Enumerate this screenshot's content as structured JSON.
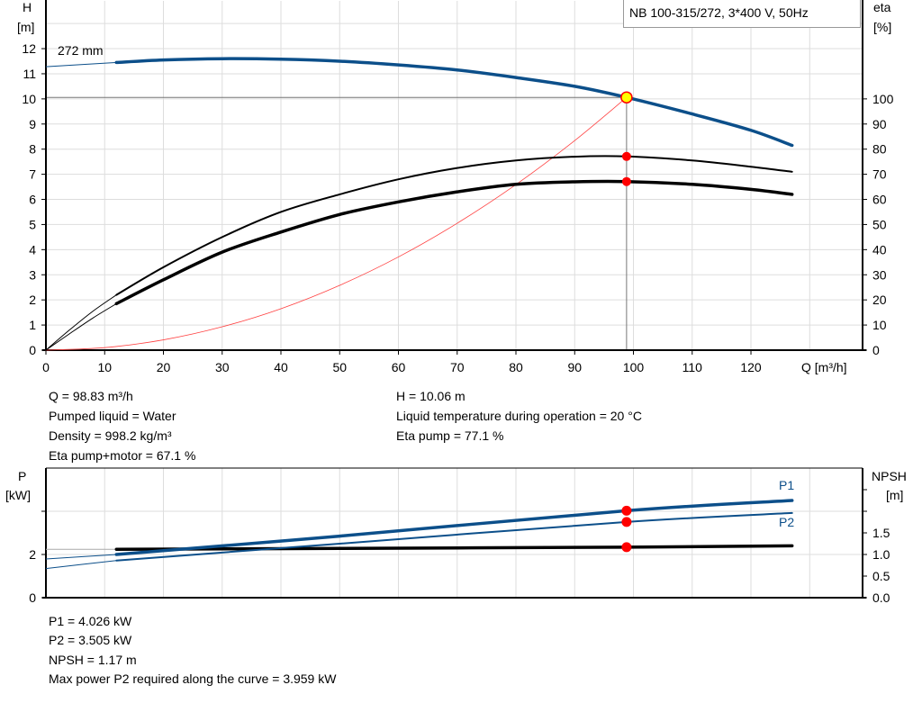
{
  "title": "NB 100-315/272, 3*400 V, 50Hz",
  "colors": {
    "head_curve": "#0c4f8a",
    "efficiency": "#000000",
    "system_curve": "#ff4040",
    "duty_marker": "#ff0000",
    "duty_point_fill": "#ffff00",
    "power": "#0c4f8a",
    "npsh": "#000000",
    "grid": "#dddddd"
  },
  "chart_data": [
    {
      "type": "line",
      "grid": true,
      "xlabel": "Q [m³/h]",
      "ylabel_left": [
        "H",
        "[m]"
      ],
      "ylabel_right": [
        "eta",
        "[%]"
      ],
      "xlim": [
        0,
        139
      ],
      "ylim_left": [
        0,
        13.9
      ],
      "ylim_right": [
        0,
        139
      ],
      "xticks": [
        "0",
        "10",
        "20",
        "30",
        "40",
        "50",
        "60",
        "70",
        "80",
        "90",
        "100",
        "110",
        "120"
      ],
      "yticks_left": [
        "0",
        "1",
        "2",
        "3",
        "4",
        "5",
        "6",
        "7",
        "8",
        "9",
        "10",
        "11",
        "12"
      ],
      "yticks_right": [
        "0",
        "10",
        "20",
        "30",
        "40",
        "50",
        "60",
        "70",
        "80",
        "90",
        "100"
      ],
      "annotation": "272 mm",
      "duty_point": {
        "Q": 98.83,
        "H": 10.06,
        "eta_pump": 77.1,
        "eta_pump_motor": 67.1
      },
      "series": [
        {
          "id": "H",
          "axis": "left",
          "x": [
            12,
            20,
            30,
            40,
            50,
            60,
            70,
            80,
            90,
            98.83,
            110,
            120,
            127
          ],
          "y": [
            11.45,
            11.55,
            11.6,
            11.58,
            11.5,
            11.35,
            11.15,
            10.85,
            10.5,
            10.06,
            9.4,
            8.75,
            8.15
          ],
          "extension": {
            "x": [
              0,
              12
            ],
            "y": [
              11.28,
              11.45
            ]
          }
        },
        {
          "id": "eta_pump",
          "axis": "right",
          "x": [
            12,
            20,
            30,
            40,
            50,
            60,
            70,
            80,
            90,
            98.83,
            110,
            120,
            127
          ],
          "y": [
            22,
            33,
            45,
            55,
            62,
            68,
            72.5,
            75.5,
            77,
            77.1,
            75.5,
            73,
            71
          ],
          "extension": {
            "x": [
              0,
              4,
              8,
              12
            ],
            "y": [
              0,
              8,
              15.5,
              22
            ]
          }
        },
        {
          "id": "eta_pump_motor",
          "axis": "right",
          "x": [
            12,
            20,
            30,
            40,
            50,
            60,
            70,
            80,
            90,
            98.83,
            110,
            120,
            127
          ],
          "y": [
            18.5,
            28,
            39,
            47,
            54,
            59,
            63,
            66,
            67,
            67.1,
            66,
            64,
            62
          ],
          "extension": {
            "x": [
              0,
              4,
              8,
              12
            ],
            "y": [
              0,
              6.5,
              12.8,
              18.5
            ]
          }
        },
        {
          "id": "system_curve",
          "axis": "left",
          "x": [
            0,
            10,
            20,
            30,
            40,
            50,
            60,
            70,
            80,
            90,
            98.83
          ],
          "y": [
            0,
            0.1,
            0.41,
            0.93,
            1.65,
            2.58,
            3.71,
            5.05,
            6.59,
            8.34,
            10.06
          ]
        }
      ]
    },
    {
      "type": "line",
      "grid": true,
      "ylabel_left": [
        "P",
        "[kW]"
      ],
      "ylabel_right": [
        "NPSH",
        "[m]"
      ],
      "xlim": [
        0,
        139
      ],
      "ylim_left": [
        0,
        6
      ],
      "ylim_right": [
        0,
        3
      ],
      "yticks_left": [
        "0",
        "2",
        ""
      ],
      "yticks_right": [
        "0.0",
        "0.5",
        "1.0",
        "1.5",
        "",
        ""
      ],
      "duty_point": {
        "Q": 98.83,
        "P1": 4.026,
        "P2": 3.505,
        "NPSH": 1.17
      },
      "series": [
        {
          "id": "P1",
          "name": "P1",
          "axis": "left",
          "x": [
            12,
            50,
            98.83,
            127
          ],
          "y": [
            2.0,
            2.85,
            4.026,
            4.5
          ],
          "extension": {
            "x": [
              0,
              12
            ],
            "y": [
              1.79,
              2.0
            ]
          }
        },
        {
          "id": "P2",
          "name": "P2",
          "axis": "left",
          "x": [
            12,
            50,
            98.83,
            127
          ],
          "y": [
            1.72,
            2.5,
            3.505,
            3.92
          ],
          "extension": {
            "x": [
              0,
              12
            ],
            "y": [
              1.35,
              1.72
            ]
          }
        },
        {
          "id": "NPSH",
          "axis": "right",
          "x": [
            12,
            50,
            98.83,
            127
          ],
          "y": [
            1.12,
            1.14,
            1.17,
            1.2
          ],
          "extension": {
            "x": [
              0,
              12
            ],
            "y": [
              1.12,
              1.12
            ]
          }
        }
      ]
    }
  ],
  "info_top": {
    "left": [
      "Q = 98.83 m³/h",
      "Pumped liquid = Water",
      "Density = 998.2 kg/m³",
      "Eta pump+motor = 67.1 %"
    ],
    "right": [
      "H = 10.06 m",
      "Liquid temperature during operation = 20 °C",
      "Eta pump = 77.1 %"
    ]
  },
  "info_bottom": [
    "P1 = 4.026 kW",
    "P2 = 3.505 kW",
    "NPSH = 1.17 m",
    "Max power P2 required along the curve = 3.959 kW"
  ]
}
